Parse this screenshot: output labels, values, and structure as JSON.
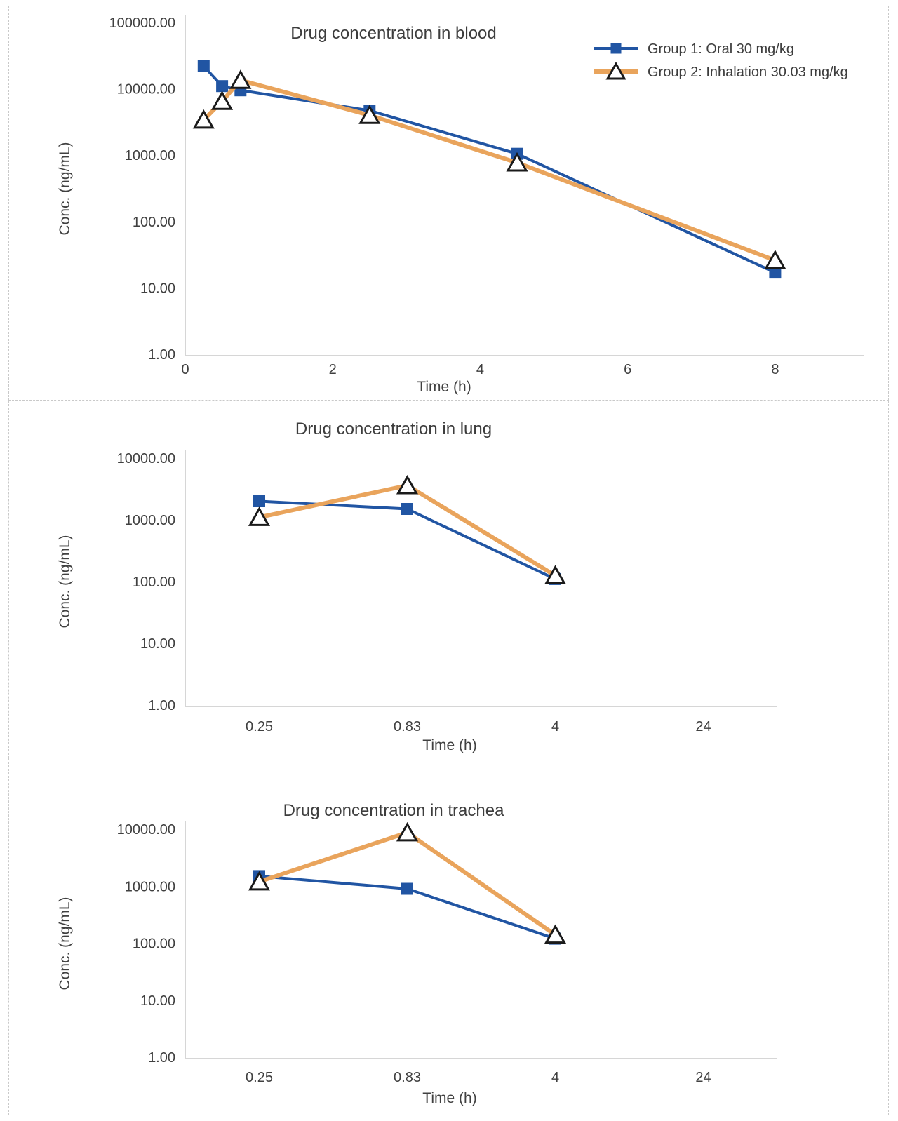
{
  "page": {
    "background": "#ffffff",
    "panel_border_color": "#c9c9c9"
  },
  "colors": {
    "group1": "#2155a3",
    "group2": "#e9a45c",
    "axis_line": "#d6d6d6",
    "text": "#404040",
    "marker_stroke": "#1a1a1a",
    "triangle_fill": "#ffffff"
  },
  "legend": {
    "position": "top-right",
    "items": [
      {
        "label": "Group 1: Oral 30 mg/kg",
        "series": "group1",
        "marker": "square"
      },
      {
        "label": "Group 2: Inhalation 30.03 mg/kg",
        "series": "group2",
        "marker": "triangle"
      }
    ]
  },
  "chart_data": [
    {
      "type": "line",
      "title": "Drug concentration in blood",
      "xlabel": "Time (h)",
      "ylabel": "Conc. (ng/mL)",
      "y_scale": "log",
      "ylim": [
        1,
        100000
      ],
      "y_tick_labels": [
        "100000.00",
        "10000.00",
        "1000.00",
        "100.00",
        "10.00",
        "1.00"
      ],
      "x_mode": "linear",
      "xlim": [
        0,
        9.2
      ],
      "x_ticks": [
        0,
        2,
        4,
        6,
        8
      ],
      "grid": false,
      "show_legend": true,
      "series": [
        {
          "name": "Group 1: Oral 30 mg/kg",
          "key": "group1",
          "marker": "square",
          "points": [
            [
              0.25,
              22000
            ],
            [
              0.5,
              11000
            ],
            [
              0.75,
              9500
            ],
            [
              2.5,
              4700
            ],
            [
              4.5,
              1050
            ],
            [
              8,
              17
            ]
          ]
        },
        {
          "name": "Group 2: Inhalation 30.03 mg/kg",
          "key": "group2",
          "marker": "triangle",
          "points": [
            [
              0.25,
              3400
            ],
            [
              0.5,
              6500
            ],
            [
              0.75,
              13500
            ],
            [
              2.5,
              4000
            ],
            [
              4.5,
              770
            ],
            [
              8,
              26
            ]
          ]
        }
      ]
    },
    {
      "type": "line",
      "title": "Drug concentration in lung",
      "xlabel": "Time (h)",
      "ylabel": "Conc. (ng/mL)",
      "y_scale": "log",
      "ylim": [
        1,
        10000
      ],
      "y_tick_labels": [
        "10000.00",
        "1000.00",
        "100.00",
        "10.00",
        "1.00"
      ],
      "x_mode": "category",
      "categories": [
        "0.25",
        "0.83",
        "4",
        "24"
      ],
      "grid": false,
      "show_legend": false,
      "series": [
        {
          "name": "Group 1: Oral 30 mg/kg",
          "key": "group1",
          "marker": "square",
          "values": [
            2000,
            1500,
            110,
            null
          ]
        },
        {
          "name": "Group 2: Inhalation 30.03 mg/kg",
          "key": "group2",
          "marker": "triangle",
          "values": [
            1100,
            3600,
            125,
            null
          ]
        }
      ]
    },
    {
      "type": "line",
      "title": "Drug concentration in trachea",
      "xlabel": "Time (h)",
      "ylabel": "Conc. (ng/mL)",
      "y_scale": "log",
      "ylim": [
        1,
        10000
      ],
      "y_tick_labels": [
        "10000.00",
        "1000.00",
        "100.00",
        "10.00",
        "1.00"
      ],
      "x_mode": "category",
      "categories": [
        "0.25",
        "0.83",
        "4",
        "24"
      ],
      "grid": false,
      "show_legend": false,
      "series": [
        {
          "name": "Group 1: Oral 30 mg/kg",
          "key": "group1",
          "marker": "square",
          "values": [
            1500,
            900,
            120,
            null
          ]
        },
        {
          "name": "Group 2: Inhalation 30.03 mg/kg",
          "key": "group2",
          "marker": "triangle",
          "values": [
            1200,
            8700,
            140,
            null
          ]
        }
      ]
    }
  ]
}
